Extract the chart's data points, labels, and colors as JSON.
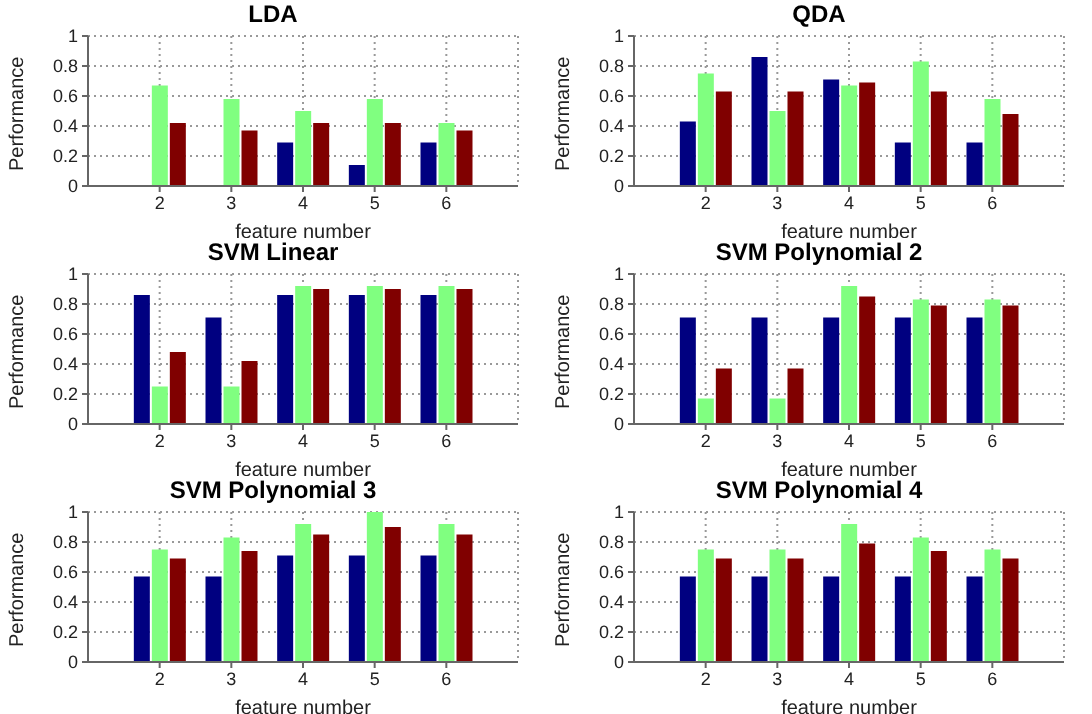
{
  "chart_data": [
    {
      "type": "bar",
      "title": "LDA",
      "xlabel": "feature number",
      "ylabel": "Performance",
      "x": [
        2,
        3,
        4,
        5,
        6
      ],
      "xlim": [
        1,
        7
      ],
      "xticks": [
        2,
        3,
        4,
        5,
        6
      ],
      "ylim": [
        0,
        1
      ],
      "yticks": [
        0,
        0.2,
        0.4,
        0.6,
        0.8,
        1
      ],
      "grid": true,
      "series": [
        {
          "color": "#000080",
          "values": [
            0,
            0,
            0.29,
            0.14,
            0.29
          ]
        },
        {
          "color": "#80ff80",
          "values": [
            0.67,
            0.58,
            0.5,
            0.58,
            0.42
          ]
        },
        {
          "color": "#800000",
          "values": [
            0.42,
            0.37,
            0.42,
            0.42,
            0.37
          ]
        }
      ]
    },
    {
      "type": "bar",
      "title": "QDA",
      "xlabel": "feature number",
      "ylabel": "Performance",
      "x": [
        2,
        3,
        4,
        5,
        6
      ],
      "xlim": [
        1,
        7
      ],
      "xticks": [
        2,
        3,
        4,
        5,
        6
      ],
      "ylim": [
        0,
        1
      ],
      "yticks": [
        0,
        0.2,
        0.4,
        0.6,
        0.8,
        1
      ],
      "grid": true,
      "series": [
        {
          "color": "#000080",
          "values": [
            0.43,
            0.86,
            0.71,
            0.29,
            0.29
          ]
        },
        {
          "color": "#80ff80",
          "values": [
            0.75,
            0.5,
            0.67,
            0.83,
            0.58
          ]
        },
        {
          "color": "#800000",
          "values": [
            0.63,
            0.63,
            0.69,
            0.63,
            0.48
          ]
        }
      ]
    },
    {
      "type": "bar",
      "title": "SVM Linear",
      "xlabel": "feature number",
      "ylabel": "Performance",
      "x": [
        2,
        3,
        4,
        5,
        6
      ],
      "xlim": [
        1,
        7
      ],
      "xticks": [
        2,
        3,
        4,
        5,
        6
      ],
      "ylim": [
        0,
        1
      ],
      "yticks": [
        0,
        0.2,
        0.4,
        0.6,
        0.8,
        1
      ],
      "grid": true,
      "series": [
        {
          "color": "#000080",
          "values": [
            0.86,
            0.71,
            0.86,
            0.86,
            0.86
          ]
        },
        {
          "color": "#80ff80",
          "values": [
            0.25,
            0.25,
            0.92,
            0.92,
            0.92
          ]
        },
        {
          "color": "#800000",
          "values": [
            0.48,
            0.42,
            0.9,
            0.9,
            0.9
          ]
        }
      ]
    },
    {
      "type": "bar",
      "title": "SVM Polynomial 2",
      "xlabel": "feature number",
      "ylabel": "Performance",
      "x": [
        2,
        3,
        4,
        5,
        6
      ],
      "xlim": [
        1,
        7
      ],
      "xticks": [
        2,
        3,
        4,
        5,
        6
      ],
      "ylim": [
        0,
        1
      ],
      "yticks": [
        0,
        0.2,
        0.4,
        0.6,
        0.8,
        1
      ],
      "grid": true,
      "series": [
        {
          "color": "#000080",
          "values": [
            0.71,
            0.71,
            0.71,
            0.71,
            0.71
          ]
        },
        {
          "color": "#80ff80",
          "values": [
            0.17,
            0.17,
            0.92,
            0.83,
            0.83
          ]
        },
        {
          "color": "#800000",
          "values": [
            0.37,
            0.37,
            0.85,
            0.79,
            0.79
          ]
        }
      ]
    },
    {
      "type": "bar",
      "title": "SVM Polynomial 3",
      "xlabel": "feature number",
      "ylabel": "Performance",
      "x": [
        2,
        3,
        4,
        5,
        6
      ],
      "xlim": [
        1,
        7
      ],
      "xticks": [
        2,
        3,
        4,
        5,
        6
      ],
      "ylim": [
        0,
        1
      ],
      "yticks": [
        0,
        0.2,
        0.4,
        0.6,
        0.8,
        1
      ],
      "grid": true,
      "series": [
        {
          "color": "#000080",
          "values": [
            0.57,
            0.57,
            0.71,
            0.71,
            0.71
          ]
        },
        {
          "color": "#80ff80",
          "values": [
            0.75,
            0.83,
            0.92,
            1,
            0.92
          ]
        },
        {
          "color": "#800000",
          "values": [
            0.69,
            0.74,
            0.85,
            0.9,
            0.85
          ]
        }
      ]
    },
    {
      "type": "bar",
      "title": "SVM Polynomial 4",
      "xlabel": "feature number",
      "ylabel": "Performance",
      "x": [
        2,
        3,
        4,
        5,
        6
      ],
      "xlim": [
        1,
        7
      ],
      "xticks": [
        2,
        3,
        4,
        5,
        6
      ],
      "ylim": [
        0,
        1
      ],
      "yticks": [
        0,
        0.2,
        0.4,
        0.6,
        0.8,
        1
      ],
      "grid": true,
      "series": [
        {
          "color": "#000080",
          "values": [
            0.57,
            0.57,
            0.57,
            0.57,
            0.57
          ]
        },
        {
          "color": "#80ff80",
          "values": [
            0.75,
            0.75,
            0.92,
            0.83,
            0.75
          ]
        },
        {
          "color": "#800000",
          "values": [
            0.69,
            0.69,
            0.79,
            0.74,
            0.69
          ]
        }
      ]
    }
  ]
}
